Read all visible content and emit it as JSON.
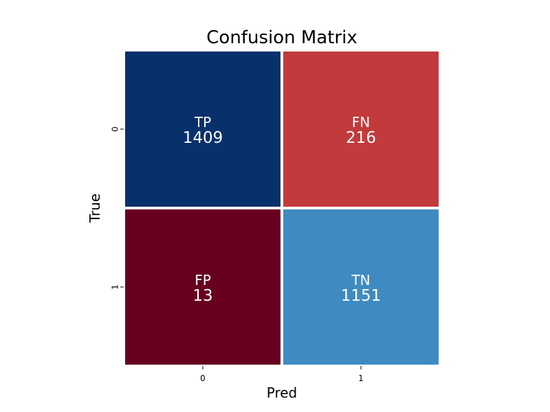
{
  "chart_data": {
    "type": "heatmap",
    "title": "Confusion Matrix",
    "xlabel": "Pred",
    "ylabel": "True",
    "x_tick_labels": [
      "0",
      "1"
    ],
    "y_tick_labels": [
      "0",
      "1"
    ],
    "cells": [
      [
        {
          "label": "TP",
          "value": 1409,
          "color": "#08306b"
        },
        {
          "label": "FN",
          "value": 216,
          "color": "#c23a3c"
        }
      ],
      [
        {
          "label": "FP",
          "value": 13,
          "color": "#67001f"
        },
        {
          "label": "TN",
          "value": 1151,
          "color": "#3f8bc1"
        }
      ]
    ],
    "grid_line_color": "#ffffff",
    "annotation_color": "#ffffff"
  }
}
